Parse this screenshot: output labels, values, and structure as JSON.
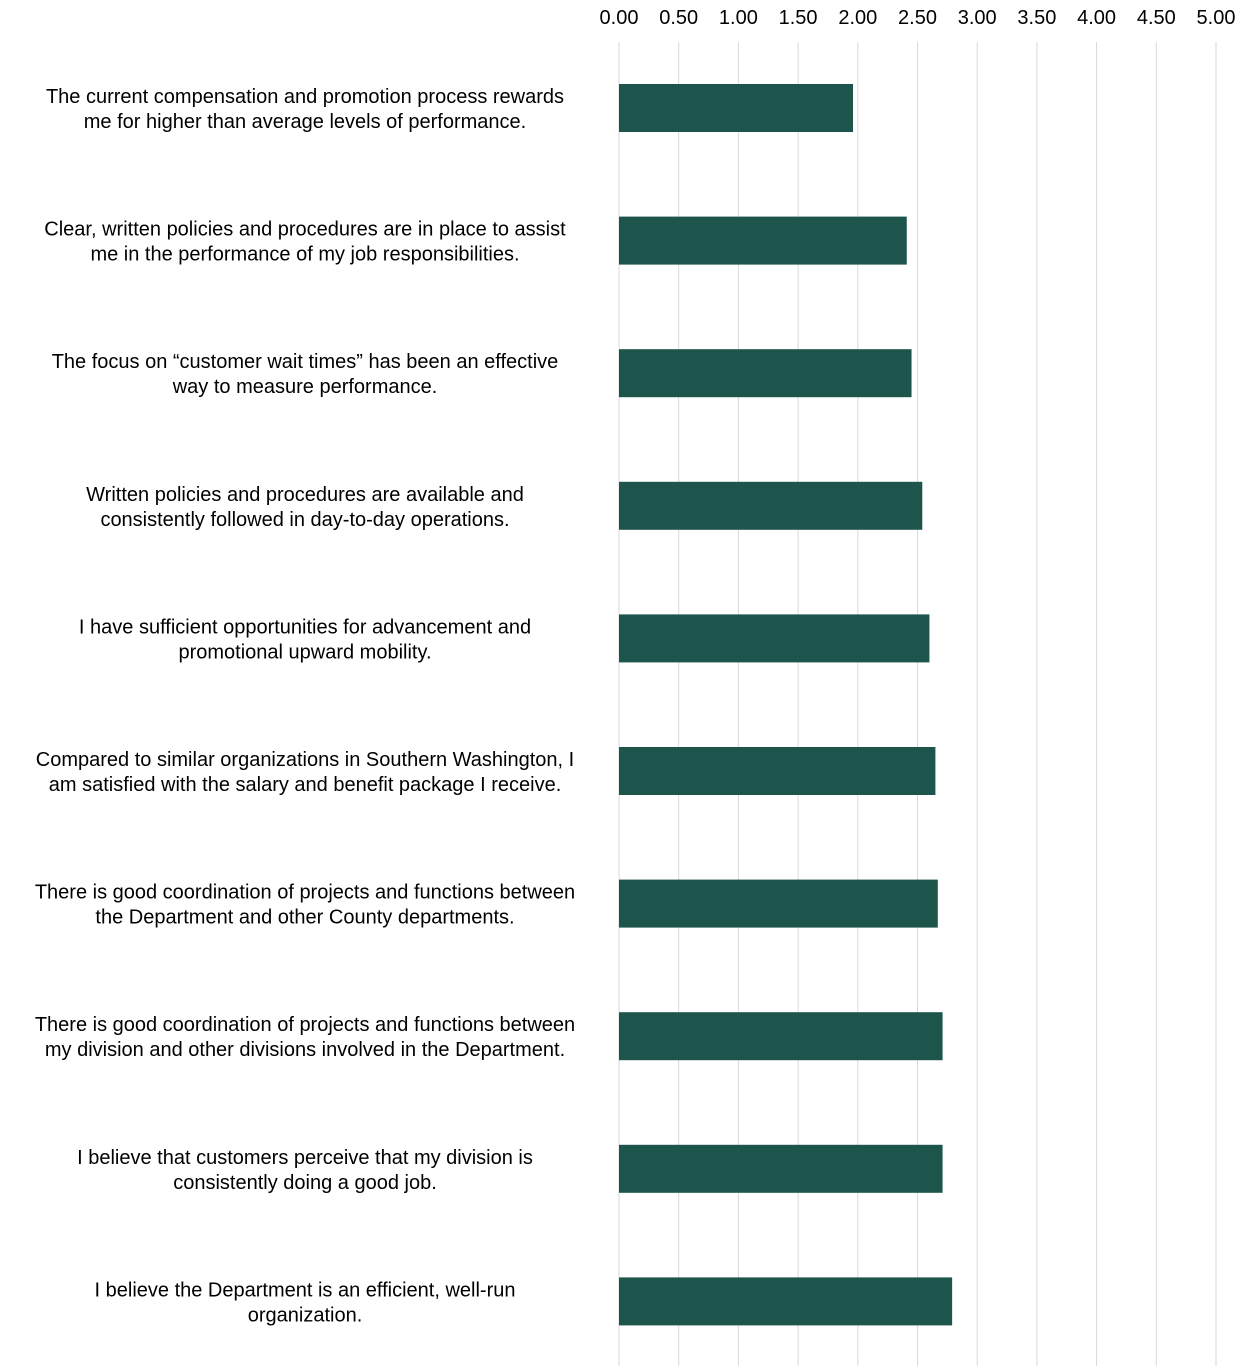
{
  "chart_data": {
    "type": "bar",
    "orientation": "horizontal",
    "categories": [
      [
        "The current compensation and promotion process rewards",
        "me for higher than average levels of performance."
      ],
      [
        "Clear, written policies and procedures are in place to assist",
        "me in the performance of my job responsibilities."
      ],
      [
        "The focus on “customer wait times” has been an effective",
        "way to measure performance."
      ],
      [
        "Written policies and procedures are available and",
        "consistently followed in day-to-day operations."
      ],
      [
        "I have sufficient opportunities for advancement and",
        "promotional upward mobility."
      ],
      [
        "Compared to similar organizations in Southern Washington, I",
        "am satisfied with the salary and benefit package I receive."
      ],
      [
        "There is good coordination of projects and functions between",
        "the Department and other County departments."
      ],
      [
        "There is good coordination of projects and functions between",
        "my division and other divisions involved in the Department."
      ],
      [
        "I believe that customers perceive that my division is",
        "consistently doing a good job."
      ],
      [
        "I believe the Department is an efficient, well-run",
        "organization."
      ]
    ],
    "values": [
      1.96,
      2.41,
      2.45,
      2.54,
      2.6,
      2.65,
      2.67,
      2.71,
      2.71,
      2.79
    ],
    "xlim": [
      0,
      5
    ],
    "ticks": [
      "0.00",
      "0.50",
      "1.00",
      "1.50",
      "2.00",
      "2.50",
      "3.00",
      "3.50",
      "4.00",
      "4.50",
      "5.00"
    ],
    "tick_values": [
      0,
      0.5,
      1,
      1.5,
      2,
      2.5,
      3,
      3.5,
      4,
      4.5,
      5
    ],
    "axis_position": "top",
    "grid": true,
    "bar_color": "#1d554d",
    "grid_color": "#d9d9d9",
    "title": "",
    "xlabel": "",
    "ylabel": ""
  }
}
